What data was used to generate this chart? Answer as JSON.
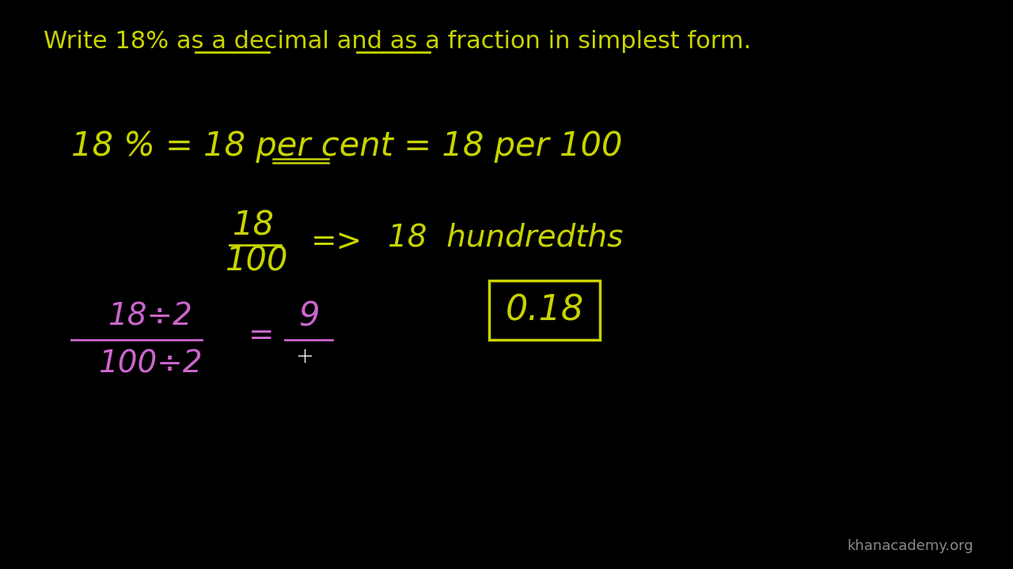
{
  "background_color": "#000000",
  "yellow_color": "#c8d400",
  "pink_color": "#cc66cc",
  "title_text": "Write 18% as a decimal and as a fraction in simplest form.",
  "watermark": "khanacademy.org"
}
